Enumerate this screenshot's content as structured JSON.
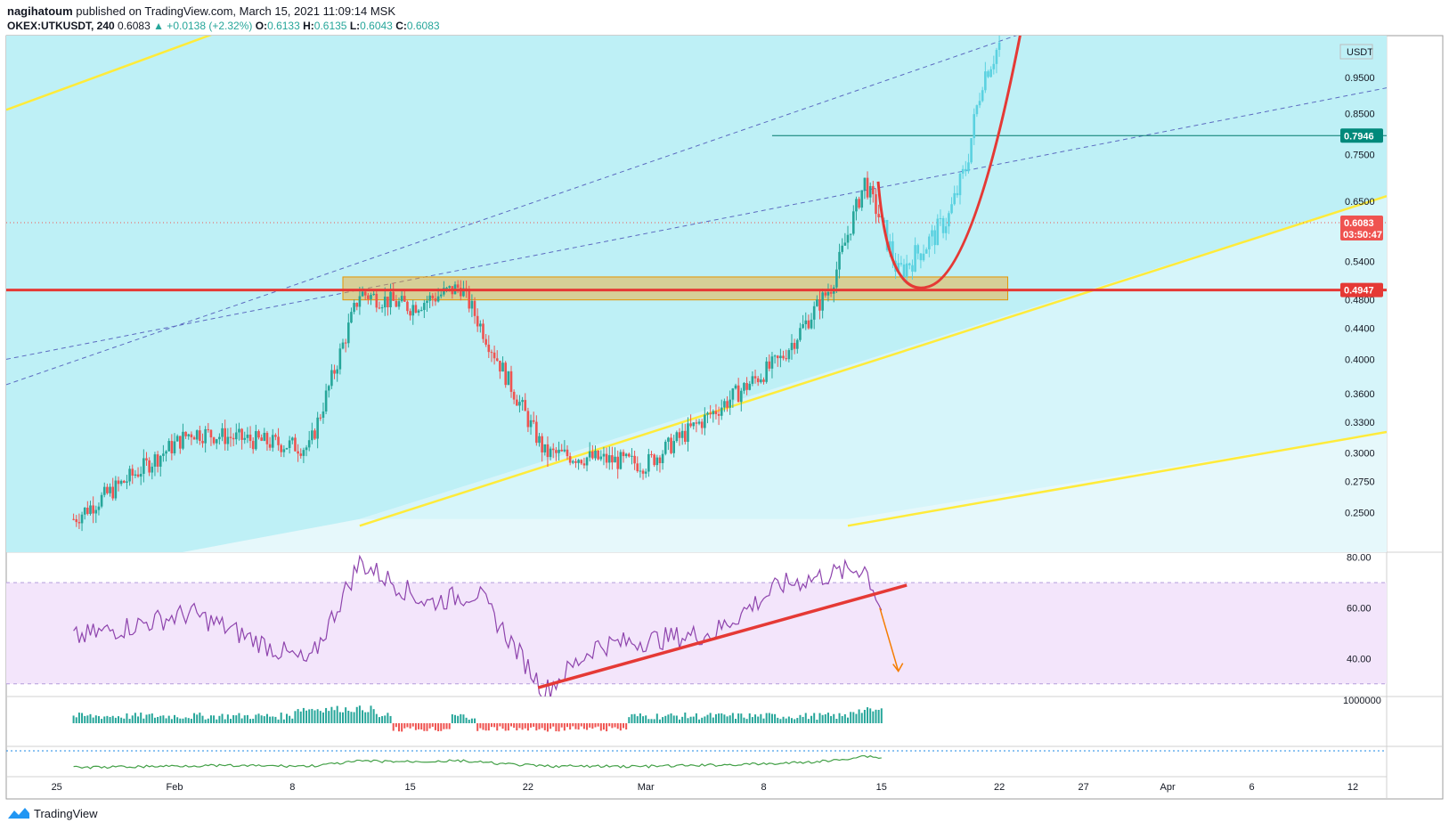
{
  "header": {
    "author": "nagihatoum",
    "published_text": "published on TradingView.com, March 15, 2021 11:09:14 MSK",
    "symbol": "OKEX:UTKUSDT, 240",
    "last": "0.6083",
    "change": "▲ +0.0138 (+2.32%)",
    "o_label": "O:",
    "o_val": "0.6133",
    "h_label": "H:",
    "h_val": "0.6135",
    "l_label": "L:",
    "l_val": "0.6043",
    "c_label": "C:",
    "c_val": "0.6083"
  },
  "footer": {
    "brand": "TradingView"
  },
  "colors": {
    "up": "#26a69a",
    "down": "#ef5350",
    "channel": "#b2ebf2",
    "trend_yellow": "#ffeb3b",
    "support_red": "#e53935",
    "zone": "#f5a623",
    "rsi_line": "#7e57c2",
    "rsi_band": "#e1bee7",
    "projection": "#5ad1e0"
  },
  "chart_data": [
    {
      "type": "candlestick",
      "panel": "price",
      "scale": "log",
      "ylim": [
        0.235,
        1.08
      ],
      "currency_label": "USDT",
      "y_ticks": [
        "0.2500",
        "0.2750",
        "0.3000",
        "0.3300",
        "0.3600",
        "0.4000",
        "0.4400",
        "0.4800",
        "0.5400",
        "0.6500",
        "0.7500",
        "0.8500",
        "0.9500"
      ],
      "x_ticks": [
        "25",
        "Feb",
        "8",
        "15",
        "22",
        "Mar",
        "8",
        "15",
        "22",
        "27",
        "Apr",
        "6",
        "12"
      ],
      "price_tags": [
        {
          "value": 0.7946,
          "label": "0.7946",
          "color": "#00897b"
        },
        {
          "value": 0.6083,
          "label": "0.6083",
          "sub": "03:50:47",
          "color": "#ef5350"
        },
        {
          "value": 0.4947,
          "label": "0.4947",
          "color": "#e53935"
        }
      ],
      "key_points": [
        {
          "date": "2021-01-26",
          "close": 0.245
        },
        {
          "date": "2021-02-02",
          "close": 0.32
        },
        {
          "date": "2021-02-09",
          "close": 0.305
        },
        {
          "date": "2021-02-12",
          "close": 0.49
        },
        {
          "date": "2021-02-15",
          "close": 0.47
        },
        {
          "date": "2021-02-18",
          "close": 0.5
        },
        {
          "date": "2021-02-23",
          "close": 0.3
        },
        {
          "date": "2021-03-01",
          "close": 0.29
        },
        {
          "date": "2021-03-05",
          "close": 0.34
        },
        {
          "date": "2021-03-09",
          "close": 0.4
        },
        {
          "date": "2021-03-12",
          "close": 0.5
        },
        {
          "date": "2021-03-14",
          "close": 0.69
        },
        {
          "date": "2021-03-15",
          "close": 0.6083
        }
      ],
      "projection_points": [
        {
          "date": "2021-03-16",
          "close": 0.52
        },
        {
          "date": "2021-03-17",
          "close": 0.55
        },
        {
          "date": "2021-03-18",
          "close": 0.58
        },
        {
          "date": "2021-03-19",
          "close": 0.62
        },
        {
          "date": "2021-03-20",
          "close": 0.72
        },
        {
          "date": "2021-03-21",
          "close": 0.95
        },
        {
          "date": "2021-03-22",
          "close": 1.05
        }
      ],
      "levels": {
        "support": 0.4947,
        "resistance": 0.7946,
        "zone": [
          0.48,
          0.515
        ]
      }
    },
    {
      "type": "line",
      "panel": "rsi",
      "ylim": [
        25,
        82
      ],
      "y_ticks": [
        "80.00",
        "60.00",
        "40.00"
      ],
      "band": [
        30,
        70
      ],
      "key_points": [
        {
          "date": "2021-01-26",
          "value": 48
        },
        {
          "date": "2021-02-02",
          "value": 58
        },
        {
          "date": "2021-02-09",
          "value": 38
        },
        {
          "date": "2021-02-12",
          "value": 78
        },
        {
          "date": "2021-02-16",
          "value": 62
        },
        {
          "date": "2021-02-19",
          "value": 66
        },
        {
          "date": "2021-02-23",
          "value": 27
        },
        {
          "date": "2021-02-26",
          "value": 45
        },
        {
          "date": "2021-03-05",
          "value": 50
        },
        {
          "date": "2021-03-09",
          "value": 69
        },
        {
          "date": "2021-03-14",
          "value": 76
        },
        {
          "date": "2021-03-15",
          "value": 60
        }
      ]
    },
    {
      "type": "bar",
      "panel": "volume_oscillator",
      "y_ticks": [
        "1000000"
      ]
    }
  ]
}
